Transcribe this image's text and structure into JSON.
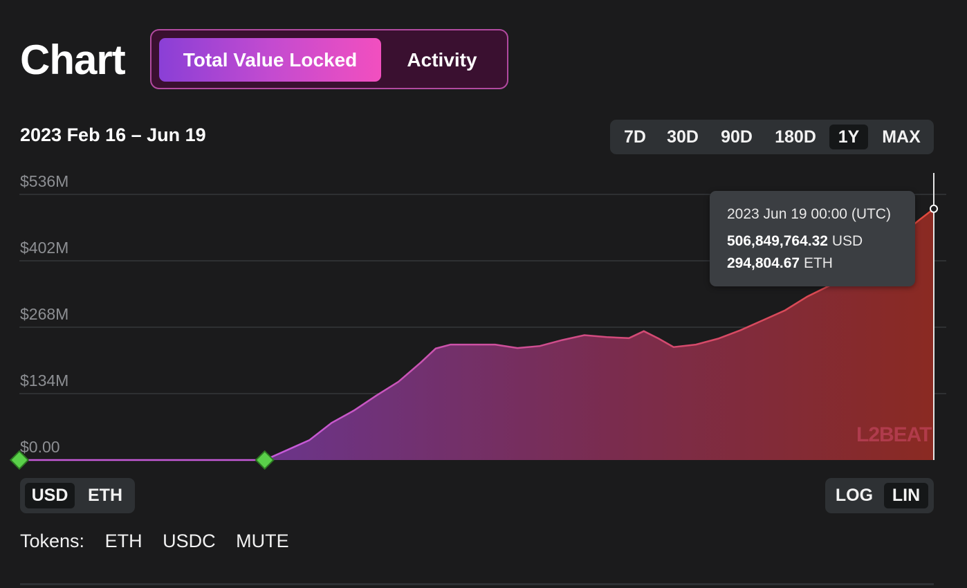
{
  "header": {
    "title": "Chart",
    "tabs": [
      {
        "label": "Total Value Locked",
        "active": true
      },
      {
        "label": "Activity",
        "active": false
      }
    ]
  },
  "date_range": "2023 Feb 16 – Jun 19",
  "range_buttons": [
    {
      "label": "7D",
      "active": false
    },
    {
      "label": "30D",
      "active": false
    },
    {
      "label": "90D",
      "active": false
    },
    {
      "label": "180D",
      "active": false
    },
    {
      "label": "1Y",
      "active": true
    },
    {
      "label": "MAX",
      "active": false
    }
  ],
  "tooltip": {
    "date": "2023 Jun 19 00:00 (UTC)",
    "usd_value": "506,849,764.32",
    "usd_unit": "USD",
    "eth_value": "294,804.67",
    "eth_unit": "ETH"
  },
  "watermark": "L2BEAT",
  "unit_toggle": [
    {
      "label": "USD",
      "active": true
    },
    {
      "label": "ETH",
      "active": false
    }
  ],
  "scale_toggle": [
    {
      "label": "LOG",
      "active": false
    },
    {
      "label": "LIN",
      "active": true
    }
  ],
  "tokens": {
    "label": "Tokens:",
    "items": [
      "ETH",
      "USDC",
      "MUTE"
    ]
  },
  "colors": {
    "accent_gradient_start": "#8a3fd6",
    "accent_gradient_end": "#f24fbf",
    "area_start": "#7b3a8f",
    "area_end": "#8a2a22",
    "line_start": "#c65ad8",
    "line_end": "#e14a3c",
    "milestone": "#5ad04a"
  },
  "chart_data": {
    "type": "area",
    "x_range": [
      "2023-02-16",
      "2023-06-19"
    ],
    "y_range": [
      0,
      536
    ],
    "y_unit": "USD millions",
    "y_ticks": [
      "$0.00",
      "$134M",
      "$268M",
      "$402M",
      "$536M"
    ],
    "y_tick_values": [
      0,
      134,
      268,
      402,
      536
    ],
    "grid": true,
    "scale": "linear",
    "series": [
      {
        "values": [
          [
            "2023-02-16",
            0
          ],
          [
            "2023-03-21",
            0
          ],
          [
            "2023-03-24",
            20
          ],
          [
            "2023-03-27",
            40
          ],
          [
            "2023-03-30",
            75
          ],
          [
            "2023-04-02",
            100
          ],
          [
            "2023-04-05",
            130
          ],
          [
            "2023-04-08",
            158
          ],
          [
            "2023-04-11",
            197
          ],
          [
            "2023-04-13",
            225
          ],
          [
            "2023-04-15",
            233
          ],
          [
            "2023-04-18",
            233
          ],
          [
            "2023-04-21",
            233
          ],
          [
            "2023-04-24",
            226
          ],
          [
            "2023-04-27",
            230
          ],
          [
            "2023-04-30",
            242
          ],
          [
            "2023-05-03",
            252
          ],
          [
            "2023-05-06",
            248
          ],
          [
            "2023-05-09",
            246
          ],
          [
            "2023-05-11",
            260
          ],
          [
            "2023-05-13",
            245
          ],
          [
            "2023-05-15",
            228
          ],
          [
            "2023-05-18",
            233
          ],
          [
            "2023-05-21",
            245
          ],
          [
            "2023-05-24",
            262
          ],
          [
            "2023-05-27",
            282
          ],
          [
            "2023-05-30",
            302
          ],
          [
            "2023-06-02",
            330
          ],
          [
            "2023-06-05",
            352
          ],
          [
            "2023-06-08",
            383
          ],
          [
            "2023-06-11",
            415
          ],
          [
            "2023-06-14",
            447
          ],
          [
            "2023-06-17",
            484
          ],
          [
            "2023-06-19",
            507
          ]
        ]
      }
    ],
    "markers": [
      "2023-02-16",
      "2023-03-21"
    ],
    "highlight_date": "2023-06-19"
  }
}
